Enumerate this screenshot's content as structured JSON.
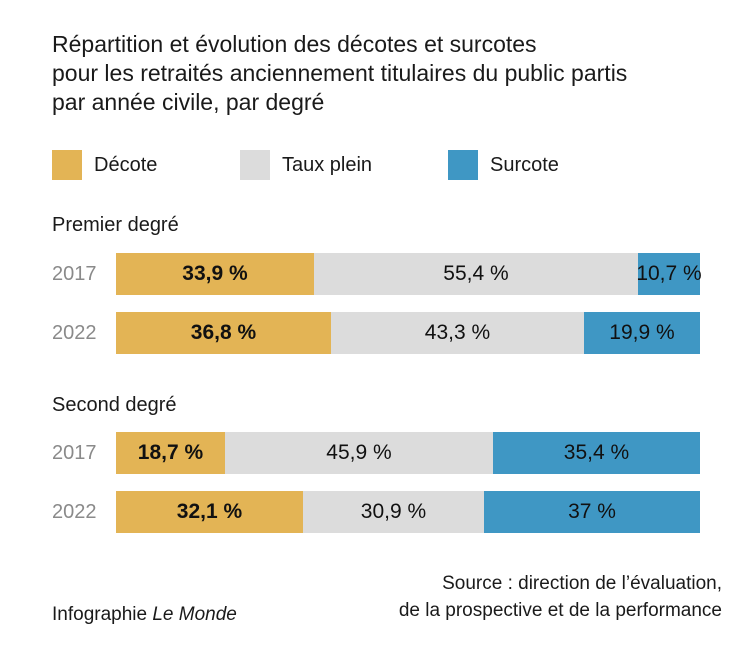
{
  "chart_data": {
    "type": "bar",
    "orientation": "horizontal",
    "stacked": true,
    "title_lines": [
      "Répartition et évolution des décotes et surcotes",
      "pour les retraités anciennement titulaires du public partis",
      "par année civile, par degré"
    ],
    "legend": [
      {
        "key": "decote",
        "label": "Décote",
        "color": "#e3b455"
      },
      {
        "key": "taux_plein",
        "label": "Taux plein",
        "color": "#dcdcdc"
      },
      {
        "key": "surcote",
        "label": "Surcote",
        "color": "#3f97c4"
      }
    ],
    "groups": [
      {
        "name": "Premier degré",
        "rows": [
          {
            "year": "2017",
            "values": [
              33.9,
              55.4,
              10.7
            ],
            "labels": [
              "33,9 %",
              "55,4 %",
              "10,7 %"
            ]
          },
          {
            "year": "2022",
            "values": [
              36.8,
              43.3,
              19.9
            ],
            "labels": [
              "36,8 %",
              "43,3 %",
              "19,9 %"
            ]
          }
        ]
      },
      {
        "name": "Second degré",
        "rows": [
          {
            "year": "2017",
            "values": [
              18.7,
              45.9,
              35.4
            ],
            "labels": [
              "18,7 %",
              "45,9 %",
              "35,4 %"
            ]
          },
          {
            "year": "2022",
            "values": [
              32.1,
              30.9,
              37
            ],
            "labels": [
              "32,1 %",
              "30,9 %",
              "37 %"
            ]
          }
        ]
      }
    ],
    "xlim": [
      0,
      100
    ],
    "unit": "%"
  },
  "footer": {
    "credit_prefix": "Infographie ",
    "credit_publication": "Le Monde",
    "source_line1": "Source : direction de l’évaluation,",
    "source_line2": "de la prospective et de la performance"
  }
}
